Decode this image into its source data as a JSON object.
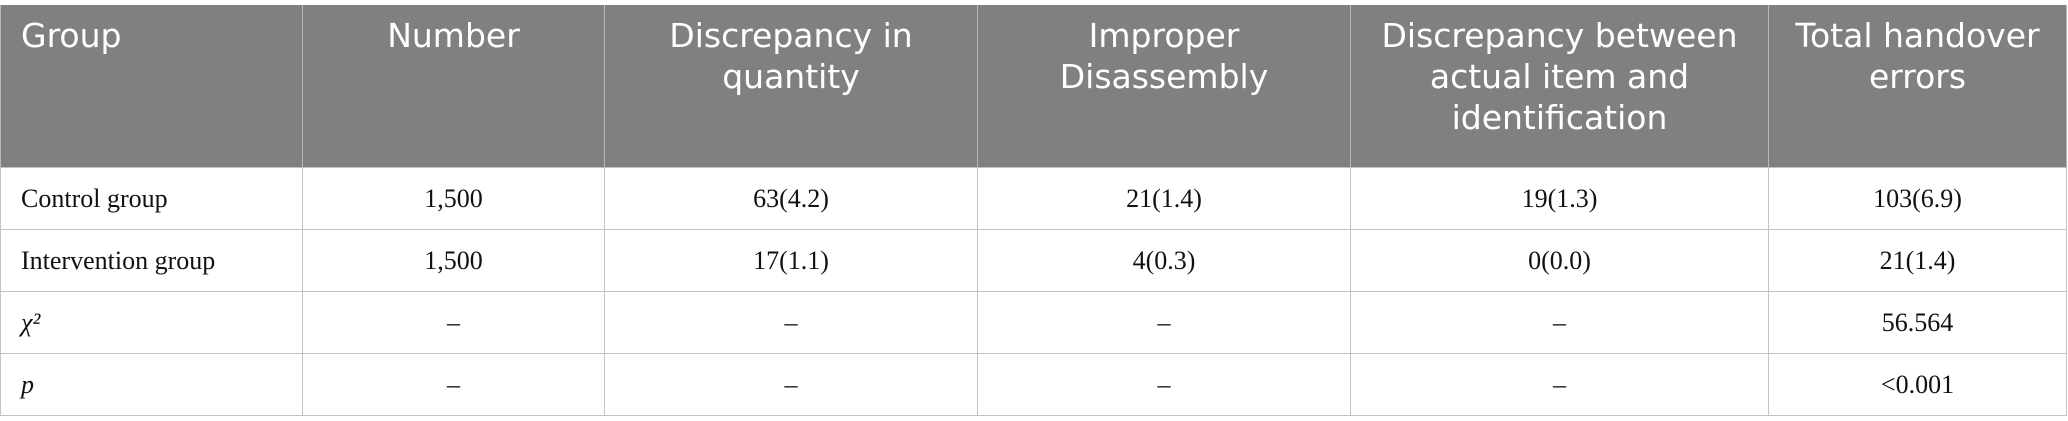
{
  "table": {
    "header": [
      "Group",
      "Number",
      "Discrepancy in quantity",
      "Improper Disassembly",
      "Discrepancy between actual item and identification",
      "Total handover errors"
    ],
    "rows": [
      [
        "Control group",
        "1,500",
        "63(4.2)",
        "21(1.4)",
        "19(1.3)",
        "103(6.9)"
      ],
      [
        "Intervention group",
        "1,500",
        "17(1.1)",
        "4(0.3)",
        "0(0.0)",
        "21(1.4)"
      ],
      [
        "χ²",
        "–",
        "–",
        "–",
        "–",
        "56.564"
      ],
      [
        "p",
        "–",
        "–",
        "–",
        "–",
        "<0.001"
      ]
    ]
  }
}
